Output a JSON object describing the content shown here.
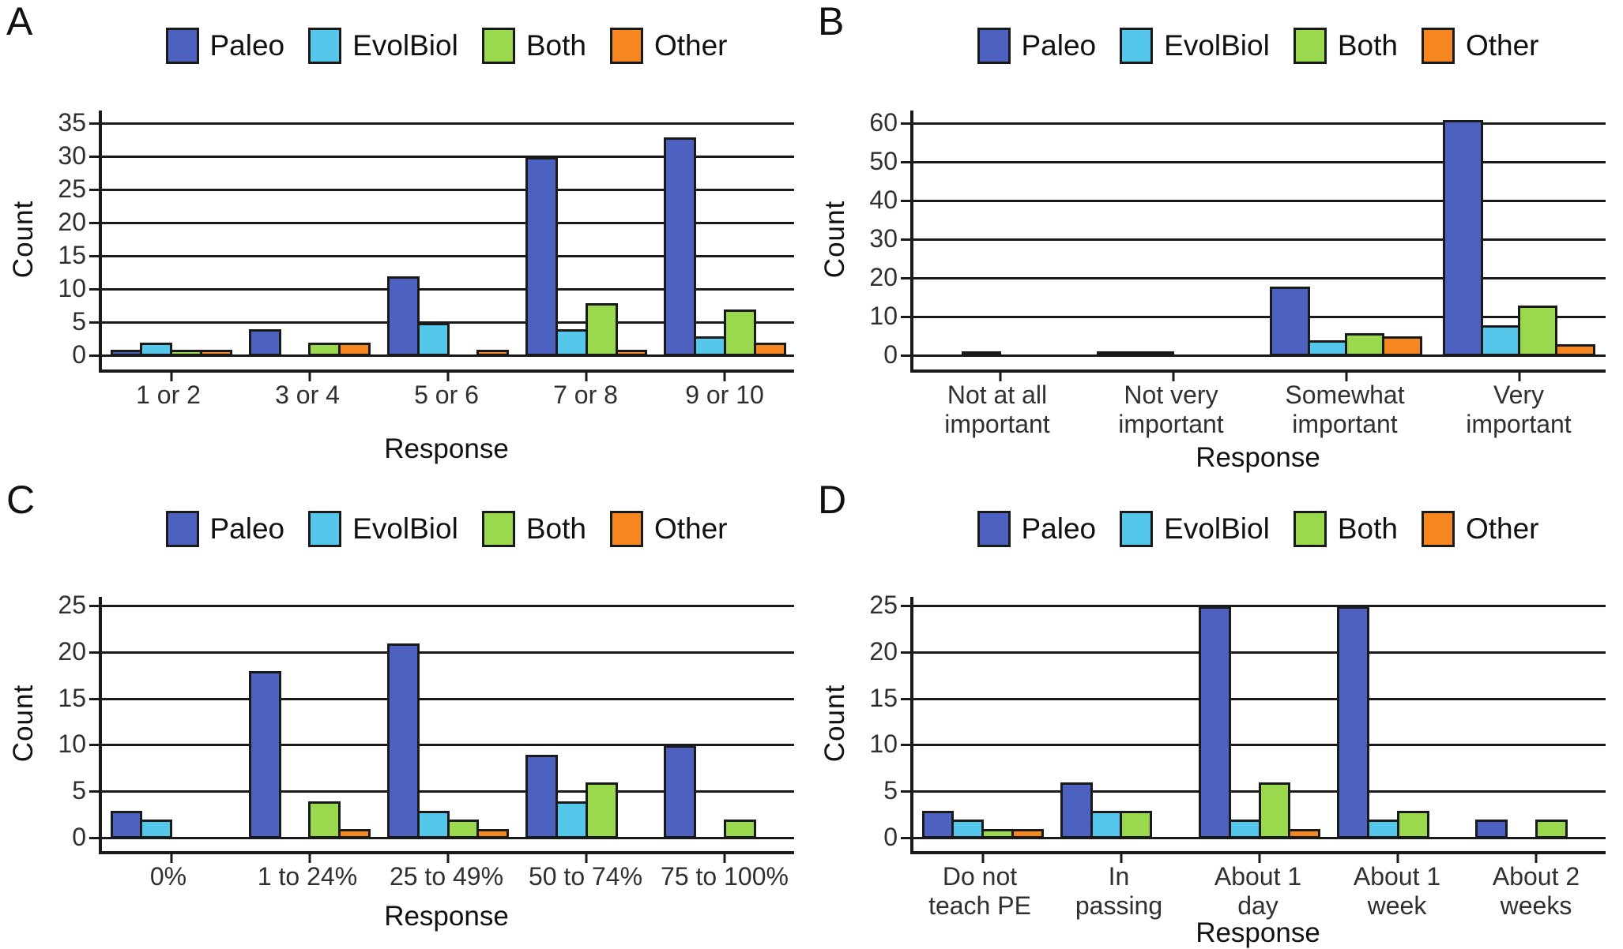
{
  "figure": {
    "background": "#ffffff",
    "panel_letters": [
      "A",
      "B",
      "C",
      "D"
    ]
  },
  "legend": {
    "position": "top-center",
    "entries": [
      {
        "label": "Paleo",
        "color": "#4D61C1"
      },
      {
        "label": "EvolBiol",
        "color": "#55C7EA"
      },
      {
        "label": "Both",
        "color": "#9AD84E"
      },
      {
        "label": "Other",
        "color": "#F6861F"
      }
    ],
    "outline_color": "#1A1A1A"
  },
  "chart_data": [
    {
      "panel": "A",
      "type": "bar",
      "title": "",
      "xlabel": "Response",
      "ylabel": "Count",
      "ylim": [
        0,
        35
      ],
      "ytick_step": 5,
      "grid": "horizontal",
      "legend_position": "top",
      "categories": [
        "1 or 2",
        "3 or 4",
        "5 or 6",
        "7 or 8",
        "9 or 10"
      ],
      "category_lines": [
        [
          "1 or 2"
        ],
        [
          "3 or 4"
        ],
        [
          "5 or 6"
        ],
        [
          "7 or 8"
        ],
        [
          "9 or 10"
        ]
      ],
      "series": [
        {
          "name": "Paleo",
          "values": [
            1,
            4,
            12,
            30,
            33
          ]
        },
        {
          "name": "EvolBiol",
          "values": [
            2,
            0,
            5,
            4,
            3
          ]
        },
        {
          "name": "Both",
          "values": [
            1,
            2,
            0,
            8,
            7
          ]
        },
        {
          "name": "Other",
          "values": [
            1,
            2,
            1,
            1,
            2
          ]
        }
      ]
    },
    {
      "panel": "B",
      "type": "bar",
      "title": "",
      "xlabel": "Response",
      "ylabel": "Count",
      "ylim": [
        0,
        60
      ],
      "ytick_step": 10,
      "grid": "horizontal",
      "legend_position": "top",
      "categories": [
        "Not at all important",
        "Not very important",
        "Somewhat important",
        "Very important"
      ],
      "category_lines": [
        [
          "Not at all",
          "important"
        ],
        [
          "Not very",
          "important"
        ],
        [
          "Somewhat",
          "important"
        ],
        [
          "Very",
          "important"
        ]
      ],
      "series": [
        {
          "name": "Paleo",
          "values": [
            0,
            1,
            18,
            61
          ]
        },
        {
          "name": "EvolBiol",
          "values": [
            1,
            1,
            4,
            8
          ]
        },
        {
          "name": "Both",
          "values": [
            0,
            0,
            6,
            13
          ]
        },
        {
          "name": "Other",
          "values": [
            0,
            0,
            5,
            3
          ]
        }
      ]
    },
    {
      "panel": "C",
      "type": "bar",
      "title": "",
      "xlabel": "Response",
      "ylabel": "Count",
      "ylim": [
        0,
        25
      ],
      "ytick_step": 5,
      "grid": "horizontal",
      "legend_position": "top",
      "categories": [
        "0%",
        "1 to 24%",
        "25 to 49%",
        "50 to 74%",
        "75 to 100%"
      ],
      "category_lines": [
        [
          "0%"
        ],
        [
          "1 to 24%"
        ],
        [
          "25 to 49%"
        ],
        [
          "50 to 74%"
        ],
        [
          "75 to 100%"
        ]
      ],
      "series": [
        {
          "name": "Paleo",
          "values": [
            3,
            18,
            21,
            9,
            10
          ]
        },
        {
          "name": "EvolBiol",
          "values": [
            2,
            0,
            3,
            4,
            0
          ]
        },
        {
          "name": "Both",
          "values": [
            0,
            4,
            2,
            6,
            2
          ]
        },
        {
          "name": "Other",
          "values": [
            0,
            1,
            1,
            0,
            0
          ]
        }
      ]
    },
    {
      "panel": "D",
      "type": "bar",
      "title": "",
      "xlabel": "Response",
      "ylabel": "Count",
      "ylim": [
        0,
        25
      ],
      "ytick_step": 5,
      "grid": "horizontal",
      "legend_position": "top",
      "categories": [
        "Do not teach PE",
        "In passing",
        "About 1 day",
        "About 1 week",
        "About 2 weeks"
      ],
      "category_lines": [
        [
          "Do not",
          "teach PE"
        ],
        [
          "In",
          "passing"
        ],
        [
          "About 1",
          "day"
        ],
        [
          "About 1",
          "week"
        ],
        [
          "About 2",
          "weeks"
        ]
      ],
      "series": [
        {
          "name": "Paleo",
          "values": [
            3,
            6,
            25,
            25,
            2
          ]
        },
        {
          "name": "EvolBiol",
          "values": [
            2,
            3,
            2,
            2,
            0
          ]
        },
        {
          "name": "Both",
          "values": [
            1,
            3,
            6,
            3,
            2
          ]
        },
        {
          "name": "Other",
          "values": [
            1,
            0,
            1,
            0,
            0
          ]
        }
      ]
    }
  ]
}
